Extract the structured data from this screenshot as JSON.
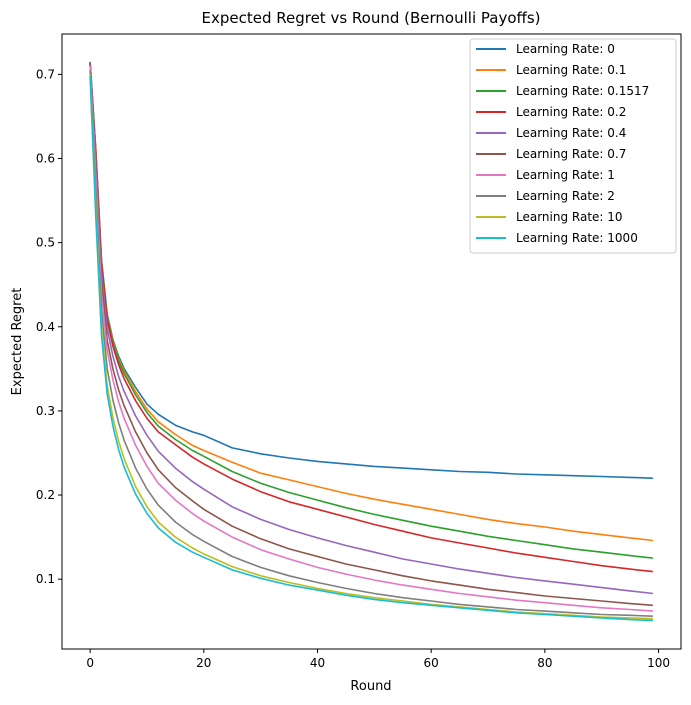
{
  "chart_data": {
    "type": "line",
    "title": "Expected Regret vs Round (Bernoulli Payoffs)",
    "xlabel": "Round",
    "ylabel": "Expected Regret",
    "xlim": [
      -4.95,
      103.95
    ],
    "ylim": [
      0.017,
      0.748
    ],
    "x_ticks": [
      0,
      20,
      40,
      60,
      80,
      100
    ],
    "y_ticks": [
      0.1,
      0.2,
      0.3,
      0.4,
      0.5,
      0.6,
      0.7
    ],
    "x_tick_labels": [
      "0",
      "20",
      "40",
      "60",
      "80",
      "100"
    ],
    "y_tick_labels": [
      "0.1",
      "0.2",
      "0.3",
      "0.4",
      "0.5",
      "0.6",
      "0.7"
    ],
    "grid": false,
    "legend_position": "top-right",
    "x": [
      0,
      1,
      2,
      3,
      4,
      5,
      6,
      8,
      10,
      12,
      15,
      18,
      20,
      25,
      30,
      35,
      40,
      45,
      50,
      55,
      60,
      65,
      70,
      75,
      80,
      85,
      90,
      95,
      99
    ],
    "series": [
      {
        "name": "Learning Rate: 0",
        "color": "#1f77b4",
        "values": [
          0.715,
          0.61,
          0.48,
          0.415,
          0.385,
          0.365,
          0.35,
          0.328,
          0.308,
          0.296,
          0.283,
          0.275,
          0.271,
          0.256,
          0.249,
          0.244,
          0.24,
          0.237,
          0.234,
          0.232,
          0.23,
          0.228,
          0.227,
          0.225,
          0.224,
          0.223,
          0.222,
          0.221,
          0.22
        ]
      },
      {
        "name": "Learning Rate: 0.1",
        "color": "#ff7f0e",
        "values": [
          0.714,
          0.61,
          0.478,
          0.413,
          0.383,
          0.362,
          0.347,
          0.323,
          0.302,
          0.287,
          0.272,
          0.259,
          0.253,
          0.239,
          0.226,
          0.218,
          0.21,
          0.202,
          0.195,
          0.189,
          0.183,
          0.177,
          0.171,
          0.166,
          0.162,
          0.157,
          0.153,
          0.149,
          0.146
        ]
      },
      {
        "name": "Learning Rate: 0.1517",
        "color": "#2ca02c",
        "values": [
          0.714,
          0.609,
          0.477,
          0.412,
          0.381,
          0.36,
          0.344,
          0.319,
          0.298,
          0.282,
          0.266,
          0.253,
          0.246,
          0.228,
          0.214,
          0.203,
          0.194,
          0.185,
          0.177,
          0.17,
          0.163,
          0.157,
          0.151,
          0.146,
          0.141,
          0.136,
          0.132,
          0.128,
          0.125
        ]
      },
      {
        "name": "Learning Rate: 0.2",
        "color": "#d62728",
        "values": [
          0.714,
          0.607,
          0.474,
          0.408,
          0.377,
          0.355,
          0.338,
          0.312,
          0.291,
          0.275,
          0.26,
          0.245,
          0.237,
          0.219,
          0.204,
          0.192,
          0.183,
          0.174,
          0.165,
          0.157,
          0.149,
          0.143,
          0.137,
          0.131,
          0.126,
          0.121,
          0.116,
          0.112,
          0.109
        ]
      },
      {
        "name": "Learning Rate: 0.4",
        "color": "#9467bd",
        "values": [
          0.713,
          0.6,
          0.465,
          0.398,
          0.365,
          0.341,
          0.323,
          0.294,
          0.271,
          0.252,
          0.232,
          0.216,
          0.207,
          0.186,
          0.171,
          0.159,
          0.149,
          0.14,
          0.132,
          0.124,
          0.118,
          0.112,
          0.107,
          0.102,
          0.098,
          0.094,
          0.09,
          0.086,
          0.083
        ]
      },
      {
        "name": "Learning Rate: 0.7",
        "color": "#8c564b",
        "values": [
          0.712,
          0.59,
          0.452,
          0.384,
          0.35,
          0.325,
          0.306,
          0.275,
          0.25,
          0.23,
          0.209,
          0.193,
          0.183,
          0.163,
          0.148,
          0.136,
          0.127,
          0.118,
          0.111,
          0.104,
          0.098,
          0.093,
          0.088,
          0.084,
          0.08,
          0.077,
          0.074,
          0.071,
          0.069
        ]
      },
      {
        "name": "Learning Rate: 1",
        "color": "#e377c2",
        "values": [
          0.71,
          0.58,
          0.44,
          0.372,
          0.337,
          0.311,
          0.291,
          0.259,
          0.234,
          0.214,
          0.194,
          0.178,
          0.169,
          0.15,
          0.135,
          0.124,
          0.114,
          0.106,
          0.099,
          0.093,
          0.088,
          0.083,
          0.079,
          0.075,
          0.072,
          0.069,
          0.066,
          0.064,
          0.062
        ]
      },
      {
        "name": "Learning Rate: 2",
        "color": "#7f7f7f",
        "values": [
          0.705,
          0.56,
          0.42,
          0.35,
          0.313,
          0.286,
          0.265,
          0.232,
          0.207,
          0.188,
          0.168,
          0.153,
          0.145,
          0.127,
          0.114,
          0.104,
          0.096,
          0.089,
          0.083,
          0.078,
          0.074,
          0.07,
          0.067,
          0.064,
          0.062,
          0.06,
          0.058,
          0.057,
          0.056
        ]
      },
      {
        "name": "Learning Rate: 10",
        "color": "#bcbd22",
        "values": [
          0.7,
          0.54,
          0.4,
          0.33,
          0.292,
          0.264,
          0.243,
          0.21,
          0.186,
          0.168,
          0.15,
          0.137,
          0.13,
          0.115,
          0.104,
          0.096,
          0.089,
          0.083,
          0.078,
          0.074,
          0.07,
          0.067,
          0.064,
          0.061,
          0.059,
          0.057,
          0.055,
          0.054,
          0.053
        ]
      },
      {
        "name": "Learning Rate: 1000",
        "color": "#17becf",
        "values": [
          0.698,
          0.53,
          0.39,
          0.32,
          0.282,
          0.254,
          0.233,
          0.201,
          0.178,
          0.161,
          0.144,
          0.132,
          0.126,
          0.111,
          0.101,
          0.093,
          0.087,
          0.081,
          0.076,
          0.072,
          0.069,
          0.066,
          0.063,
          0.06,
          0.058,
          0.056,
          0.054,
          0.052,
          0.051
        ]
      }
    ]
  }
}
